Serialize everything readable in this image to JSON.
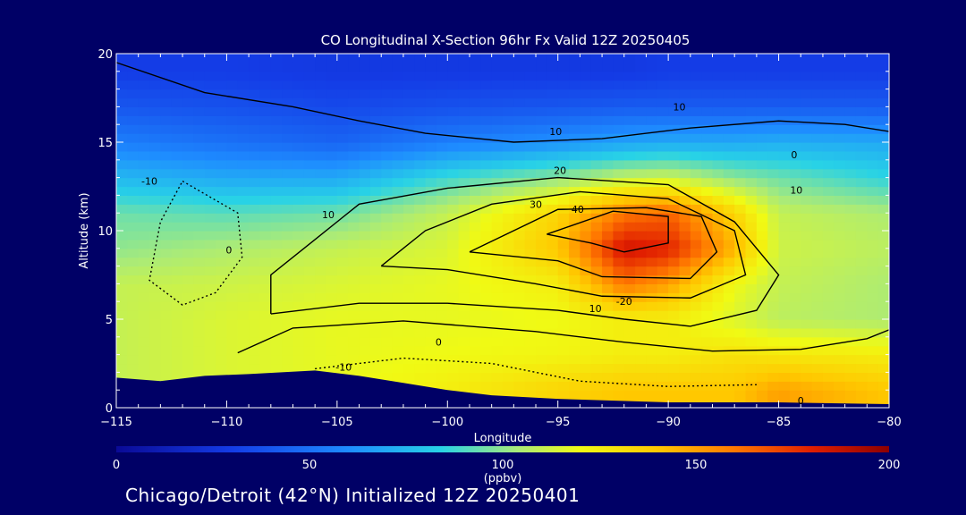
{
  "chart_data": {
    "type": "heatmap",
    "title": "CO Longitudinal X-Section 96hr  Fx Valid 12Z 20250405",
    "xlabel": "Longitude",
    "ylabel": "Altitude (km)",
    "xlim": [
      -115,
      -80
    ],
    "ylim": [
      0,
      20
    ],
    "x_ticks": [
      "-115",
      "-110",
      "-105",
      "-100",
      "-95",
      "-90",
      "-85",
      "-80"
    ],
    "y_ticks": [
      "0",
      "5",
      "10",
      "15",
      "20"
    ],
    "colorbar": {
      "range": [
        0,
        200
      ],
      "ticks": [
        "0",
        "50",
        "100",
        "150",
        "200"
      ],
      "unit_label": "(ppbv)"
    },
    "colors": {
      "background": "#000066",
      "terrain": "#000066"
    },
    "terrain_altitude_km": [
      [
        -115,
        1.7
      ],
      [
        -113,
        1.5
      ],
      [
        -111,
        1.8
      ],
      [
        -109,
        1.9
      ],
      [
        -106,
        2.1
      ],
      [
        -104,
        1.8
      ],
      [
        -102,
        1.4
      ],
      [
        -100,
        1.0
      ],
      [
        -98,
        0.7
      ],
      [
        -95,
        0.5
      ],
      [
        -90,
        0.3
      ],
      [
        -85,
        0.3
      ],
      [
        -80,
        0.2
      ]
    ],
    "co_ppbv_grid": {
      "longitudes": [
        -115,
        -110,
        -105,
        -100,
        -95,
        -92,
        -90,
        -87,
        -85,
        -80
      ],
      "altitudes_km": [
        1,
        3,
        5,
        7,
        9,
        11,
        13,
        15,
        17,
        19
      ],
      "values": [
        [
          110,
          115,
          118,
          125,
          135,
          140,
          140,
          140,
          150,
          140
        ],
        [
          110,
          115,
          118,
          120,
          122,
          125,
          125,
          130,
          128,
          125
        ],
        [
          110,
          115,
          118,
          118,
          120,
          125,
          125,
          115,
          108,
          105
        ],
        [
          110,
          112,
          115,
          118,
          125,
          160,
          150,
          120,
          110,
          105
        ],
        [
          100,
          105,
          110,
          115,
          140,
          185,
          180,
          145,
          112,
          108
        ],
        [
          95,
          92,
          95,
          110,
          135,
          160,
          165,
          135,
          110,
          105
        ],
        [
          75,
          70,
          70,
          88,
          100,
          110,
          112,
          100,
          95,
          85
        ],
        [
          55,
          50,
          45,
          55,
          62,
          68,
          70,
          70,
          72,
          70
        ],
        [
          40,
          38,
          35,
          38,
          40,
          42,
          42,
          42,
          42,
          42
        ],
        [
          30,
          30,
          28,
          28,
          28,
          28,
          30,
          30,
          30,
          30
        ]
      ]
    },
    "contours": [
      {
        "label": "10",
        "points": [
          [
            -108,
            5.3
          ],
          [
            -104,
            5.9
          ],
          [
            -100,
            5.9
          ],
          [
            -95,
            5.5
          ],
          [
            -92,
            5.0
          ],
          [
            -89,
            4.6
          ],
          [
            -86,
            5.5
          ],
          [
            -85,
            7.5
          ],
          [
            -87,
            10.5
          ],
          [
            -90,
            12.6
          ],
          [
            -95,
            13.0
          ],
          [
            -100,
            12.4
          ],
          [
            -104,
            11.5
          ],
          [
            -106,
            9.5
          ],
          [
            -108,
            7.5
          ],
          [
            -108,
            5.3
          ]
        ]
      },
      {
        "label": "20",
        "points": [
          [
            -103,
            8.0
          ],
          [
            -100,
            7.8
          ],
          [
            -96,
            7.0
          ],
          [
            -93,
            6.3
          ],
          [
            -89,
            6.2
          ],
          [
            -86.5,
            7.5
          ],
          [
            -87,
            10.0
          ],
          [
            -90,
            11.8
          ],
          [
            -94,
            12.2
          ],
          [
            -98,
            11.5
          ],
          [
            -101,
            10.0
          ],
          [
            -103,
            8.0
          ]
        ]
      },
      {
        "label": "30",
        "points": [
          [
            -99,
            8.8
          ],
          [
            -95,
            8.3
          ],
          [
            -93,
            7.4
          ],
          [
            -89,
            7.3
          ],
          [
            -87.8,
            8.8
          ],
          [
            -88.5,
            10.8
          ],
          [
            -91,
            11.3
          ],
          [
            -95,
            11.2
          ],
          [
            -99,
            8.8
          ]
        ]
      },
      {
        "label": "40",
        "points": [
          [
            -95.5,
            9.8
          ],
          [
            -93.5,
            9.3
          ],
          [
            -92,
            8.8
          ],
          [
            -90,
            9.3
          ],
          [
            -90,
            10.8
          ],
          [
            -92.5,
            11.1
          ],
          [
            -95.5,
            9.8
          ]
        ]
      },
      {
        "label": "0",
        "points": [
          [
            -109.5,
            3.1
          ],
          [
            -107,
            4.5
          ],
          [
            -102,
            4.9
          ],
          [
            -96,
            4.3
          ],
          [
            -92,
            3.7
          ],
          [
            -88,
            3.2
          ],
          [
            -84,
            3.3
          ],
          [
            -81,
            3.9
          ],
          [
            -80,
            4.4
          ]
        ]
      },
      {
        "label": "0",
        "points": [
          [
            -115,
            19.5
          ],
          [
            -111,
            17.8
          ],
          [
            -107,
            17.0
          ],
          [
            -104,
            16.2
          ],
          [
            -101,
            15.5
          ],
          [
            -97,
            15.0
          ],
          [
            -93,
            15.2
          ],
          [
            -89,
            15.8
          ],
          [
            -85,
            16.2
          ],
          [
            -82,
            16.0
          ],
          [
            -80,
            15.6
          ]
        ]
      },
      {
        "label": "-10",
        "points": [
          [
            -112,
            12.8
          ],
          [
            -109.5,
            11.0
          ],
          [
            -109.3,
            8.5
          ],
          [
            -110.5,
            6.5
          ],
          [
            -112,
            5.8
          ],
          [
            -113.5,
            7.2
          ],
          [
            -113,
            10.5
          ],
          [
            -112,
            12.8
          ]
        ]
      },
      {
        "label": "-10",
        "points": [
          [
            -106,
            2.2
          ],
          [
            -102,
            2.8
          ],
          [
            -98,
            2.5
          ],
          [
            -94,
            1.5
          ],
          [
            -90,
            1.2
          ],
          [
            -86,
            1.3
          ]
        ]
      }
    ],
    "contour_labels": [
      {
        "text": "10",
        "x": -89.5,
        "y": 16.8
      },
      {
        "text": "10",
        "x": -95.1,
        "y": 15.4
      },
      {
        "text": "20",
        "x": -94.9,
        "y": 13.2
      },
      {
        "text": "30",
        "x": -96.0,
        "y": 11.3
      },
      {
        "text": "40",
        "x": -94.1,
        "y": 11.0
      },
      {
        "text": "0",
        "x": -84.3,
        "y": 14.1
      },
      {
        "text": "10",
        "x": -84.2,
        "y": 12.1
      },
      {
        "text": "10",
        "x": -105.4,
        "y": 10.7
      },
      {
        "text": "-10",
        "x": -113.5,
        "y": 12.6
      },
      {
        "text": "0",
        "x": -109.9,
        "y": 8.7
      },
      {
        "text": "10",
        "x": -93.3,
        "y": 5.4
      },
      {
        "text": "-20",
        "x": -92.0,
        "y": 5.8
      },
      {
        "text": "0",
        "x": -100.4,
        "y": 3.5
      },
      {
        "text": "-10",
        "x": -104.7,
        "y": 2.1
      },
      {
        "text": "0",
        "x": -84.0,
        "y": 0.2
      }
    ]
  },
  "footer": {
    "text": "Chicago/Detroit (42°N) Initialized 12Z 20250401"
  }
}
